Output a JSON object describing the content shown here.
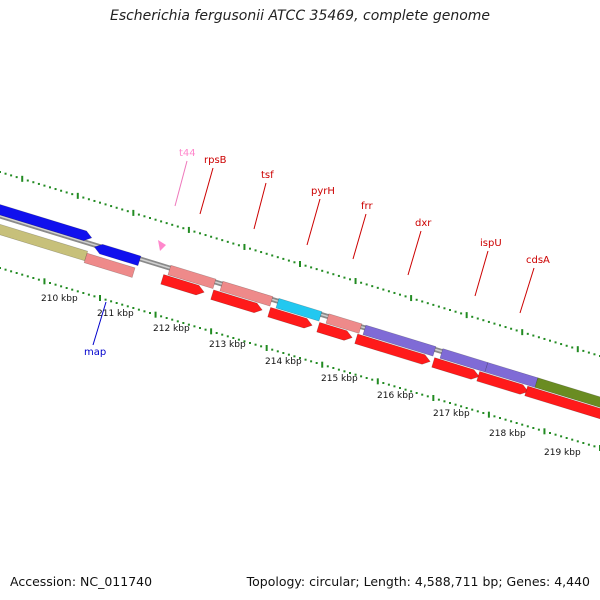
{
  "title": "Escherichia fergusonii ATCC 35469, complete genome",
  "footer": {
    "accession": "Accession: NC_011740",
    "summary": "Topology: circular; Length: 4,588,711 bp; Genes: 4,440"
  },
  "colors": {
    "gene_pink": "#ee8a8a",
    "gene_red": "#ff1a1a",
    "gene_blue": "#1010ee",
    "gene_purple": "#7f6bd6",
    "gene_cyan": "#22c8f0",
    "gene_olive": "#6a8c22",
    "gene_khaki": "#c7c07a",
    "trna_pink": "#ff88cc",
    "label_red": "#cc0000",
    "label_blue": "#0000cc",
    "label_pink": "#ee77bb",
    "tick_green": "#228b22"
  },
  "gene_labels": [
    {
      "name": "t44",
      "color": "trna_pink"
    },
    {
      "name": "rpsB",
      "color": "label_red"
    },
    {
      "name": "tsf",
      "color": "label_red"
    },
    {
      "name": "pyrH",
      "color": "label_red"
    },
    {
      "name": "frr",
      "color": "label_red"
    },
    {
      "name": "dxr",
      "color": "label_red"
    },
    {
      "name": "ispU",
      "color": "label_red"
    },
    {
      "name": "cdsA",
      "color": "label_red"
    },
    {
      "name": "map",
      "color": "label_blue"
    }
  ],
  "kbp_labels": [
    "210 kbp",
    "211 kbp",
    "212 kbp",
    "213 kbp",
    "214 kbp",
    "215 kbp",
    "216 kbp",
    "217 kbp",
    "218 kbp",
    "219 kbp"
  ]
}
